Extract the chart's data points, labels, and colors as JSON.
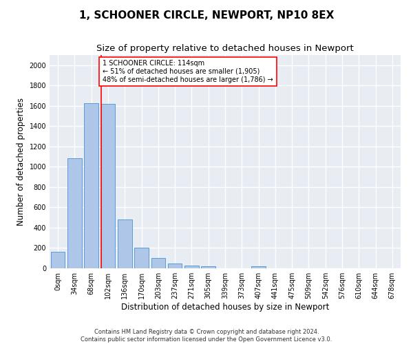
{
  "title": "1, SCHOONER CIRCLE, NEWPORT, NP10 8EX",
  "subtitle": "Size of property relative to detached houses in Newport",
  "xlabel": "Distribution of detached houses by size in Newport",
  "ylabel": "Number of detached properties",
  "categories": [
    "0sqm",
    "34sqm",
    "68sqm",
    "102sqm",
    "136sqm",
    "170sqm",
    "203sqm",
    "237sqm",
    "271sqm",
    "305sqm",
    "339sqm",
    "373sqm",
    "407sqm",
    "441sqm",
    "475sqm",
    "509sqm",
    "542sqm",
    "576sqm",
    "610sqm",
    "644sqm",
    "678sqm"
  ],
  "bar_values": [
    165,
    1085,
    1625,
    1620,
    480,
    200,
    100,
    45,
    30,
    20,
    0,
    0,
    20,
    0,
    0,
    0,
    0,
    0,
    0,
    0,
    0
  ],
  "bar_color": "#aec6e8",
  "bar_edge_color": "#5b9bd5",
  "background_color": "#e8edf4",
  "grid_color": "#ffffff",
  "annotation_text": "1 SCHOONER CIRCLE: 114sqm\n← 51% of detached houses are smaller (1,905)\n48% of semi-detached houses are larger (1,786) →",
  "vline_x_index": 3,
  "ylim": [
    0,
    2100
  ],
  "yticks": [
    0,
    200,
    400,
    600,
    800,
    1000,
    1200,
    1400,
    1600,
    1800,
    2000
  ],
  "footer_line1": "Contains HM Land Registry data © Crown copyright and database right 2024.",
  "footer_line2": "Contains public sector information licensed under the Open Government Licence v3.0.",
  "title_fontsize": 11,
  "subtitle_fontsize": 9.5,
  "xlabel_fontsize": 8.5,
  "ylabel_fontsize": 8.5,
  "annot_fontsize": 7,
  "tick_fontsize": 7
}
